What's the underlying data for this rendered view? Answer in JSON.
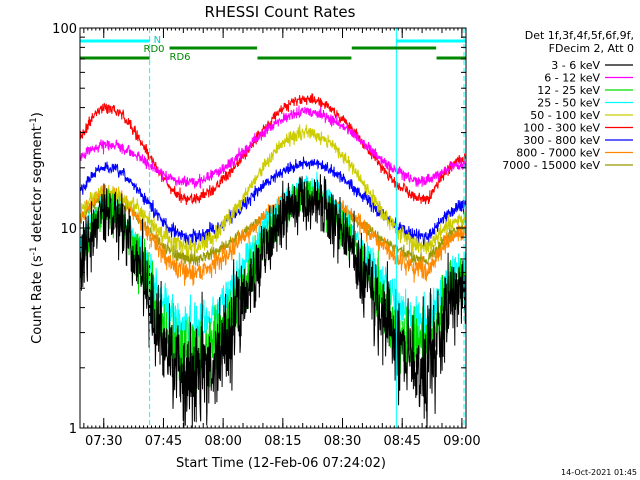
{
  "chart_data": {
    "type": "line",
    "title": "RHESSI Count Rates",
    "xlabel": "Start Time (12-Feb-06 07:24:02)",
    "ylabel_main": "Count Rate (s",
    "ylabel_sup1": "-1",
    "ylabel_mid": " detector segment",
    "ylabel_sup2": "-1",
    "ylabel_end": ")",
    "yscale": "log",
    "ylim": [
      1,
      100
    ],
    "xlim_minutes": [
      0,
      97
    ],
    "x_ticks": [
      {
        "label": "07:30",
        "min": 5.97
      },
      {
        "label": "07:45",
        "min": 20.97
      },
      {
        "label": "08:00",
        "min": 35.97
      },
      {
        "label": "08:15",
        "min": 50.97
      },
      {
        "label": "08:30",
        "min": 65.97
      },
      {
        "label": "08:45",
        "min": 80.97
      },
      {
        "label": "09:00",
        "min": 95.97
      }
    ],
    "y_ticks": [
      {
        "label": "1",
        "value": 1
      },
      {
        "label": "10",
        "value": 10
      },
      {
        "label": "100",
        "value": 100
      }
    ],
    "legend": {
      "placement": "right",
      "header_line1": "Det 1f,3f,4f,5f,6f,9f,",
      "header_line2": "FDecim 2, Att 0"
    },
    "series": [
      {
        "name": "3 - 6 keV",
        "color": "#000000",
        "peak1": 12,
        "trough1": 1.8,
        "peak2": 14,
        "trough2": 2.0,
        "end": 5.0,
        "noise": 0.22
      },
      {
        "name": "6 - 12 keV",
        "color": "#ff00ff",
        "peak1": 26,
        "trough1": 17,
        "peak2": 38,
        "trough2": 17,
        "end": 21,
        "noise": 0.05
      },
      {
        "name": "12 - 25 keV",
        "color": "#00dd00",
        "peak1": 12,
        "trough1": 2.3,
        "peak2": 14,
        "trough2": 2.5,
        "end": 5.5,
        "noise": 0.15
      },
      {
        "name": "25 - 50 keV",
        "color": "#00ffff",
        "peak1": 13,
        "trough1": 3.2,
        "peak2": 16,
        "trough2": 3.4,
        "end": 6.5,
        "noise": 0.1
      },
      {
        "name": "50 - 100 keV",
        "color": "#cccc00",
        "peak1": 15,
        "trough1": 8.0,
        "peak2": 30,
        "trough2": 8.0,
        "end": 11,
        "noise": 0.06
      },
      {
        "name": "100 - 300 keV",
        "color": "#ff0000",
        "peak1": 40,
        "trough1": 14,
        "peak2": 44,
        "trough2": 14,
        "end": 22,
        "noise": 0.05
      },
      {
        "name": "300 - 800 keV",
        "color": "#0000ff",
        "peak1": 20,
        "trough1": 9.0,
        "peak2": 21,
        "trough2": 9.0,
        "end": 13,
        "noise": 0.05
      },
      {
        "name": "800 - 7000 keV",
        "color": "#ff8800",
        "peak1": 15,
        "trough1": 6.0,
        "peak2": 15,
        "trough2": 6.2,
        "end": 9.5,
        "noise": 0.06
      },
      {
        "name": "7000 - 15000 keV",
        "color": "#999900",
        "peak1": 14,
        "trough1": 7.0,
        "peak2": 14,
        "trough2": 7.0,
        "end": 10,
        "noise": 0.04
      }
    ],
    "time_features": {
      "peak1_min": 6.5,
      "trough1_min": 27.5,
      "peak2_min": 57.0,
      "trough2_min": 87.5,
      "vertical_lines_min": [
        17.5,
        79.5,
        96.5
      ]
    },
    "status_bars": [
      {
        "label": "N",
        "color": "#00ffff",
        "segments_min": [
          [
            0,
            17.5
          ],
          [
            79.5,
            97
          ]
        ],
        "level": "upper"
      },
      {
        "label": "RD0",
        "color": "#008800",
        "segments_min": [
          [
            22.5,
            44.5
          ],
          [
            68.3,
            89.5
          ]
        ],
        "level": "middle"
      },
      {
        "label": "RD6",
        "color": "#008800",
        "segments_min": [
          [
            0,
            17.5
          ],
          [
            44.6,
            68.2
          ],
          [
            89.6,
            97
          ]
        ],
        "level": "lower"
      }
    ]
  },
  "footer": {
    "timestamp": "14-Oct-2021 01:45"
  }
}
